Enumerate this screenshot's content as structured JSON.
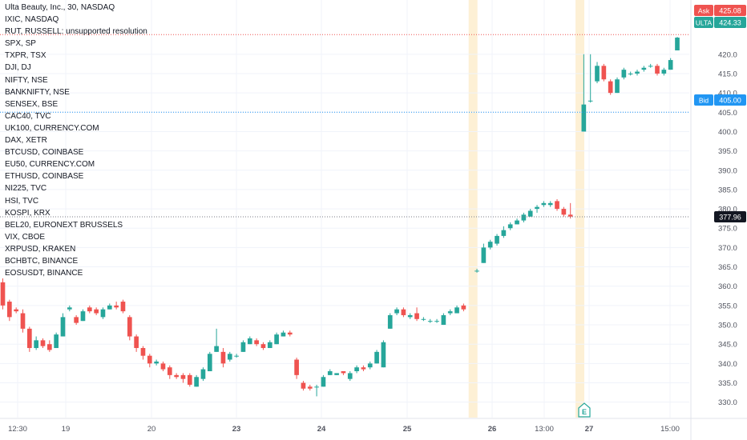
{
  "header": {
    "title": "Ulta Beauty, Inc., 30, NASDAQ"
  },
  "watchlist": [
    "IXIC, NASDAQ",
    "RUT, RUSSELL: unsupported resolution",
    "SPX, SP",
    "TXPR, TSX",
    "DJI, DJ",
    "NIFTY, NSE",
    "BANKNIFTY, NSE",
    "SENSEX, BSE",
    "CAC40, TVC",
    "UK100, CURRENCY.COM",
    "DAX, XETR",
    "BTCUSD, COINBASE",
    "EU50, CURRENCY.COM",
    "ETHUSD, COINBASE",
    "NI225, TVC",
    "HSI, TVC",
    "KOSPI, KRX",
    "BEL20, EURONEXT BRUSSELS",
    "VIX, CBOE",
    "XRPUSD, KRAKEN",
    "BCHBTC, BINANCE",
    "EOSUSDT, BINANCE"
  ],
  "price_tags": {
    "ask": {
      "label": "Ask",
      "value": "425.08"
    },
    "symbol": {
      "label": "ULTA",
      "value": "424.33"
    },
    "bid": {
      "label": "Bid",
      "value": "405.00"
    },
    "last": {
      "value": "377.96"
    }
  },
  "earnings_marker": {
    "label": "E"
  },
  "colors": {
    "up": "#26a69a",
    "down": "#ef5350",
    "ask": "#ef5350",
    "bid": "#2196f3",
    "grid": "#f0f3fa",
    "session_highlight": "#fdf0d5",
    "text": "#131722",
    "axis_text": "#50535e"
  },
  "chart_data": {
    "type": "candlestick",
    "title": "Ulta Beauty, Inc., 30, NASDAQ",
    "y_axis": {
      "range": [
        326,
        433
      ],
      "ticks": [
        330,
        335,
        340,
        345,
        350,
        355,
        360,
        365,
        370,
        375,
        380,
        385,
        390,
        395,
        400,
        405,
        410,
        415,
        420
      ]
    },
    "x_axis": {
      "labels": [
        "12:30",
        "19",
        "20",
        "23",
        "24",
        "25",
        "26",
        "13:00",
        "27",
        "15:00"
      ]
    },
    "candles": [
      {
        "o": 361,
        "h": 362,
        "l": 354,
        "c": 355
      },
      {
        "o": 356,
        "h": 356.5,
        "l": 351,
        "c": 352
      },
      {
        "o": 354,
        "h": 354.5,
        "l": 353,
        "c": 353.5
      },
      {
        "o": 353,
        "h": 354,
        "l": 348,
        "c": 349
      },
      {
        "o": 349,
        "h": 349.5,
        "l": 343,
        "c": 344
      },
      {
        "o": 344,
        "h": 347,
        "l": 343.5,
        "c": 346
      },
      {
        "o": 346,
        "h": 346.5,
        "l": 344,
        "c": 344.5
      },
      {
        "o": 345,
        "h": 346,
        "l": 343,
        "c": 343.5
      },
      {
        "o": 344,
        "h": 348,
        "l": 344,
        "c": 347.5
      },
      {
        "o": 347,
        "h": 353,
        "l": 347,
        "c": 352
      },
      {
        "o": 354,
        "h": 355,
        "l": 353.5,
        "c": 354.5
      },
      {
        "o": 352,
        "h": 352.5,
        "l": 350,
        "c": 350.5
      },
      {
        "o": 351,
        "h": 354,
        "l": 351,
        "c": 353.5
      },
      {
        "o": 354.5,
        "h": 355,
        "l": 353,
        "c": 353.5
      },
      {
        "o": 354,
        "h": 354.5,
        "l": 352.5,
        "c": 353
      },
      {
        "o": 352,
        "h": 354.5,
        "l": 351.5,
        "c": 354
      },
      {
        "o": 354,
        "h": 355.5,
        "l": 354,
        "c": 355
      },
      {
        "o": 355,
        "h": 356,
        "l": 354,
        "c": 354.5
      },
      {
        "o": 356,
        "h": 356.5,
        "l": 353,
        "c": 353.5
      },
      {
        "o": 352,
        "h": 352.5,
        "l": 346,
        "c": 347
      },
      {
        "o": 347,
        "h": 347.5,
        "l": 343,
        "c": 344
      },
      {
        "o": 344,
        "h": 344.5,
        "l": 341,
        "c": 342
      },
      {
        "o": 342,
        "h": 342.5,
        "l": 339,
        "c": 340
      },
      {
        "o": 340,
        "h": 341,
        "l": 339.5,
        "c": 340.5
      },
      {
        "o": 340,
        "h": 340.5,
        "l": 338,
        "c": 338.5
      },
      {
        "o": 339,
        "h": 339.5,
        "l": 336,
        "c": 337
      },
      {
        "o": 337,
        "h": 337.5,
        "l": 336,
        "c": 336.5
      },
      {
        "o": 337,
        "h": 337.5,
        "l": 335,
        "c": 336
      },
      {
        "o": 337,
        "h": 337.5,
        "l": 334,
        "c": 334.5
      },
      {
        "o": 334,
        "h": 337,
        "l": 334,
        "c": 336.5
      },
      {
        "o": 336,
        "h": 339,
        "l": 335.5,
        "c": 338.5
      },
      {
        "o": 338,
        "h": 343,
        "l": 338,
        "c": 342.5
      },
      {
        "o": 343,
        "h": 349,
        "l": 343,
        "c": 344.5
      },
      {
        "o": 343,
        "h": 344,
        "l": 339,
        "c": 340
      },
      {
        "o": 341,
        "h": 343,
        "l": 340.5,
        "c": 342.5
      },
      {
        "o": 342,
        "h": 342.5,
        "l": 341.5,
        "c": 342
      },
      {
        "o": 343,
        "h": 346,
        "l": 343,
        "c": 345.5
      },
      {
        "o": 345,
        "h": 347,
        "l": 345,
        "c": 346.5
      },
      {
        "o": 346,
        "h": 346.5,
        "l": 344.5,
        "c": 345
      },
      {
        "o": 345,
        "h": 345.5,
        "l": 343.5,
        "c": 344
      },
      {
        "o": 344,
        "h": 346,
        "l": 344,
        "c": 345.5
      },
      {
        "o": 345,
        "h": 348,
        "l": 345,
        "c": 347.5
      },
      {
        "o": 347,
        "h": 348.5,
        "l": 347,
        "c": 348
      },
      {
        "o": 348,
        "h": 348.5,
        "l": 347,
        "c": 347.5
      },
      {
        "o": 341,
        "h": 341.5,
        "l": 336,
        "c": 337
      },
      {
        "o": 335,
        "h": 335.5,
        "l": 333,
        "c": 333.5
      },
      {
        "o": 334,
        "h": 334.5,
        "l": 333,
        "c": 333.5
      },
      {
        "o": 334,
        "h": 334.5,
        "l": 331.5,
        "c": 334
      },
      {
        "o": 334,
        "h": 337,
        "l": 334,
        "c": 336.5
      },
      {
        "o": 337,
        "h": 338.5,
        "l": 337,
        "c": 338
      },
      {
        "o": 337,
        "h": 337.5,
        "l": 337,
        "c": 337.5
      },
      {
        "o": 338,
        "h": 338,
        "l": 337,
        "c": 337.5
      },
      {
        "o": 336,
        "h": 338,
        "l": 335.5,
        "c": 337.5
      },
      {
        "o": 338,
        "h": 339.5,
        "l": 337.5,
        "c": 339
      },
      {
        "o": 339,
        "h": 339.5,
        "l": 338,
        "c": 338.5
      },
      {
        "o": 339,
        "h": 340.5,
        "l": 338.5,
        "c": 340
      },
      {
        "o": 340,
        "h": 343.5,
        "l": 340,
        "c": 343
      },
      {
        "o": 339,
        "h": 346,
        "l": 339,
        "c": 345.5
      },
      {
        "o": 349,
        "h": 353,
        "l": 349,
        "c": 352.5
      },
      {
        "o": 353,
        "h": 354.5,
        "l": 352.5,
        "c": 354
      },
      {
        "o": 354,
        "h": 354.5,
        "l": 352,
        "c": 352.5
      },
      {
        "o": 352,
        "h": 353,
        "l": 351.5,
        "c": 352.5
      },
      {
        "o": 353,
        "h": 354.5,
        "l": 351,
        "c": 351.5
      },
      {
        "o": 351.5,
        "h": 352,
        "l": 351,
        "c": 351.5
      },
      {
        "o": 351,
        "h": 351.5,
        "l": 350.5,
        "c": 351
      },
      {
        "o": 351,
        "h": 351.5,
        "l": 350.5,
        "c": 351
      },
      {
        "o": 350,
        "h": 353,
        "l": 350,
        "c": 352.5
      },
      {
        "o": 353,
        "h": 354,
        "l": 352.5,
        "c": 353.5
      },
      {
        "o": 353,
        "h": 355,
        "l": 353,
        "c": 354.5
      },
      {
        "o": 355,
        "h": 355.5,
        "l": 353.5,
        "c": 354
      },
      {
        "o": 364,
        "h": 364.5,
        "l": 363.5,
        "c": 364
      },
      {
        "o": 366,
        "h": 371,
        "l": 366,
        "c": 370
      },
      {
        "o": 370,
        "h": 372,
        "l": 369.5,
        "c": 371.5
      },
      {
        "o": 371,
        "h": 373.5,
        "l": 370.5,
        "c": 373
      },
      {
        "o": 373,
        "h": 375.5,
        "l": 372.5,
        "c": 374.5
      },
      {
        "o": 375,
        "h": 376.5,
        "l": 374.5,
        "c": 376
      },
      {
        "o": 376,
        "h": 377.5,
        "l": 376,
        "c": 377
      },
      {
        "o": 377,
        "h": 379,
        "l": 376.5,
        "c": 378.5
      },
      {
        "o": 378,
        "h": 380,
        "l": 378,
        "c": 379.5
      },
      {
        "o": 380,
        "h": 381,
        "l": 379,
        "c": 380.5
      },
      {
        "o": 381,
        "h": 382,
        "l": 380.5,
        "c": 381.5
      },
      {
        "o": 381,
        "h": 382,
        "l": 380.5,
        "c": 381.5
      },
      {
        "o": 382,
        "h": 382.5,
        "l": 379.5,
        "c": 380
      },
      {
        "o": 380,
        "h": 380.5,
        "l": 378,
        "c": 378.5
      },
      {
        "o": 378.5,
        "h": 381.5,
        "l": 377.5,
        "c": 378
      },
      {
        "o": 400,
        "h": 420,
        "l": 400,
        "c": 407
      },
      {
        "o": 408,
        "h": 420,
        "l": 407.5,
        "c": 408
      },
      {
        "o": 413,
        "h": 418,
        "l": 412.5,
        "c": 417
      },
      {
        "o": 417,
        "h": 417.5,
        "l": 413,
        "c": 413.5
      },
      {
        "o": 413,
        "h": 413.5,
        "l": 409.5,
        "c": 410
      },
      {
        "o": 410,
        "h": 414,
        "l": 410,
        "c": 413.5
      },
      {
        "o": 414,
        "h": 416.5,
        "l": 413.5,
        "c": 416
      },
      {
        "o": 415,
        "h": 415.5,
        "l": 414.5,
        "c": 415
      },
      {
        "o": 415,
        "h": 416,
        "l": 414.5,
        "c": 415.5
      },
      {
        "o": 416,
        "h": 417,
        "l": 415.5,
        "c": 416.5
      },
      {
        "o": 417,
        "h": 417.5,
        "l": 416.5,
        "c": 417
      },
      {
        "o": 417,
        "h": 417.5,
        "l": 414.5,
        "c": 415
      },
      {
        "o": 415,
        "h": 416.5,
        "l": 414.5,
        "c": 416
      },
      {
        "o": 416,
        "h": 419,
        "l": 416,
        "c": 418.5
      },
      {
        "o": 421,
        "h": 424.5,
        "l": 421,
        "c": 424.3
      }
    ]
  }
}
